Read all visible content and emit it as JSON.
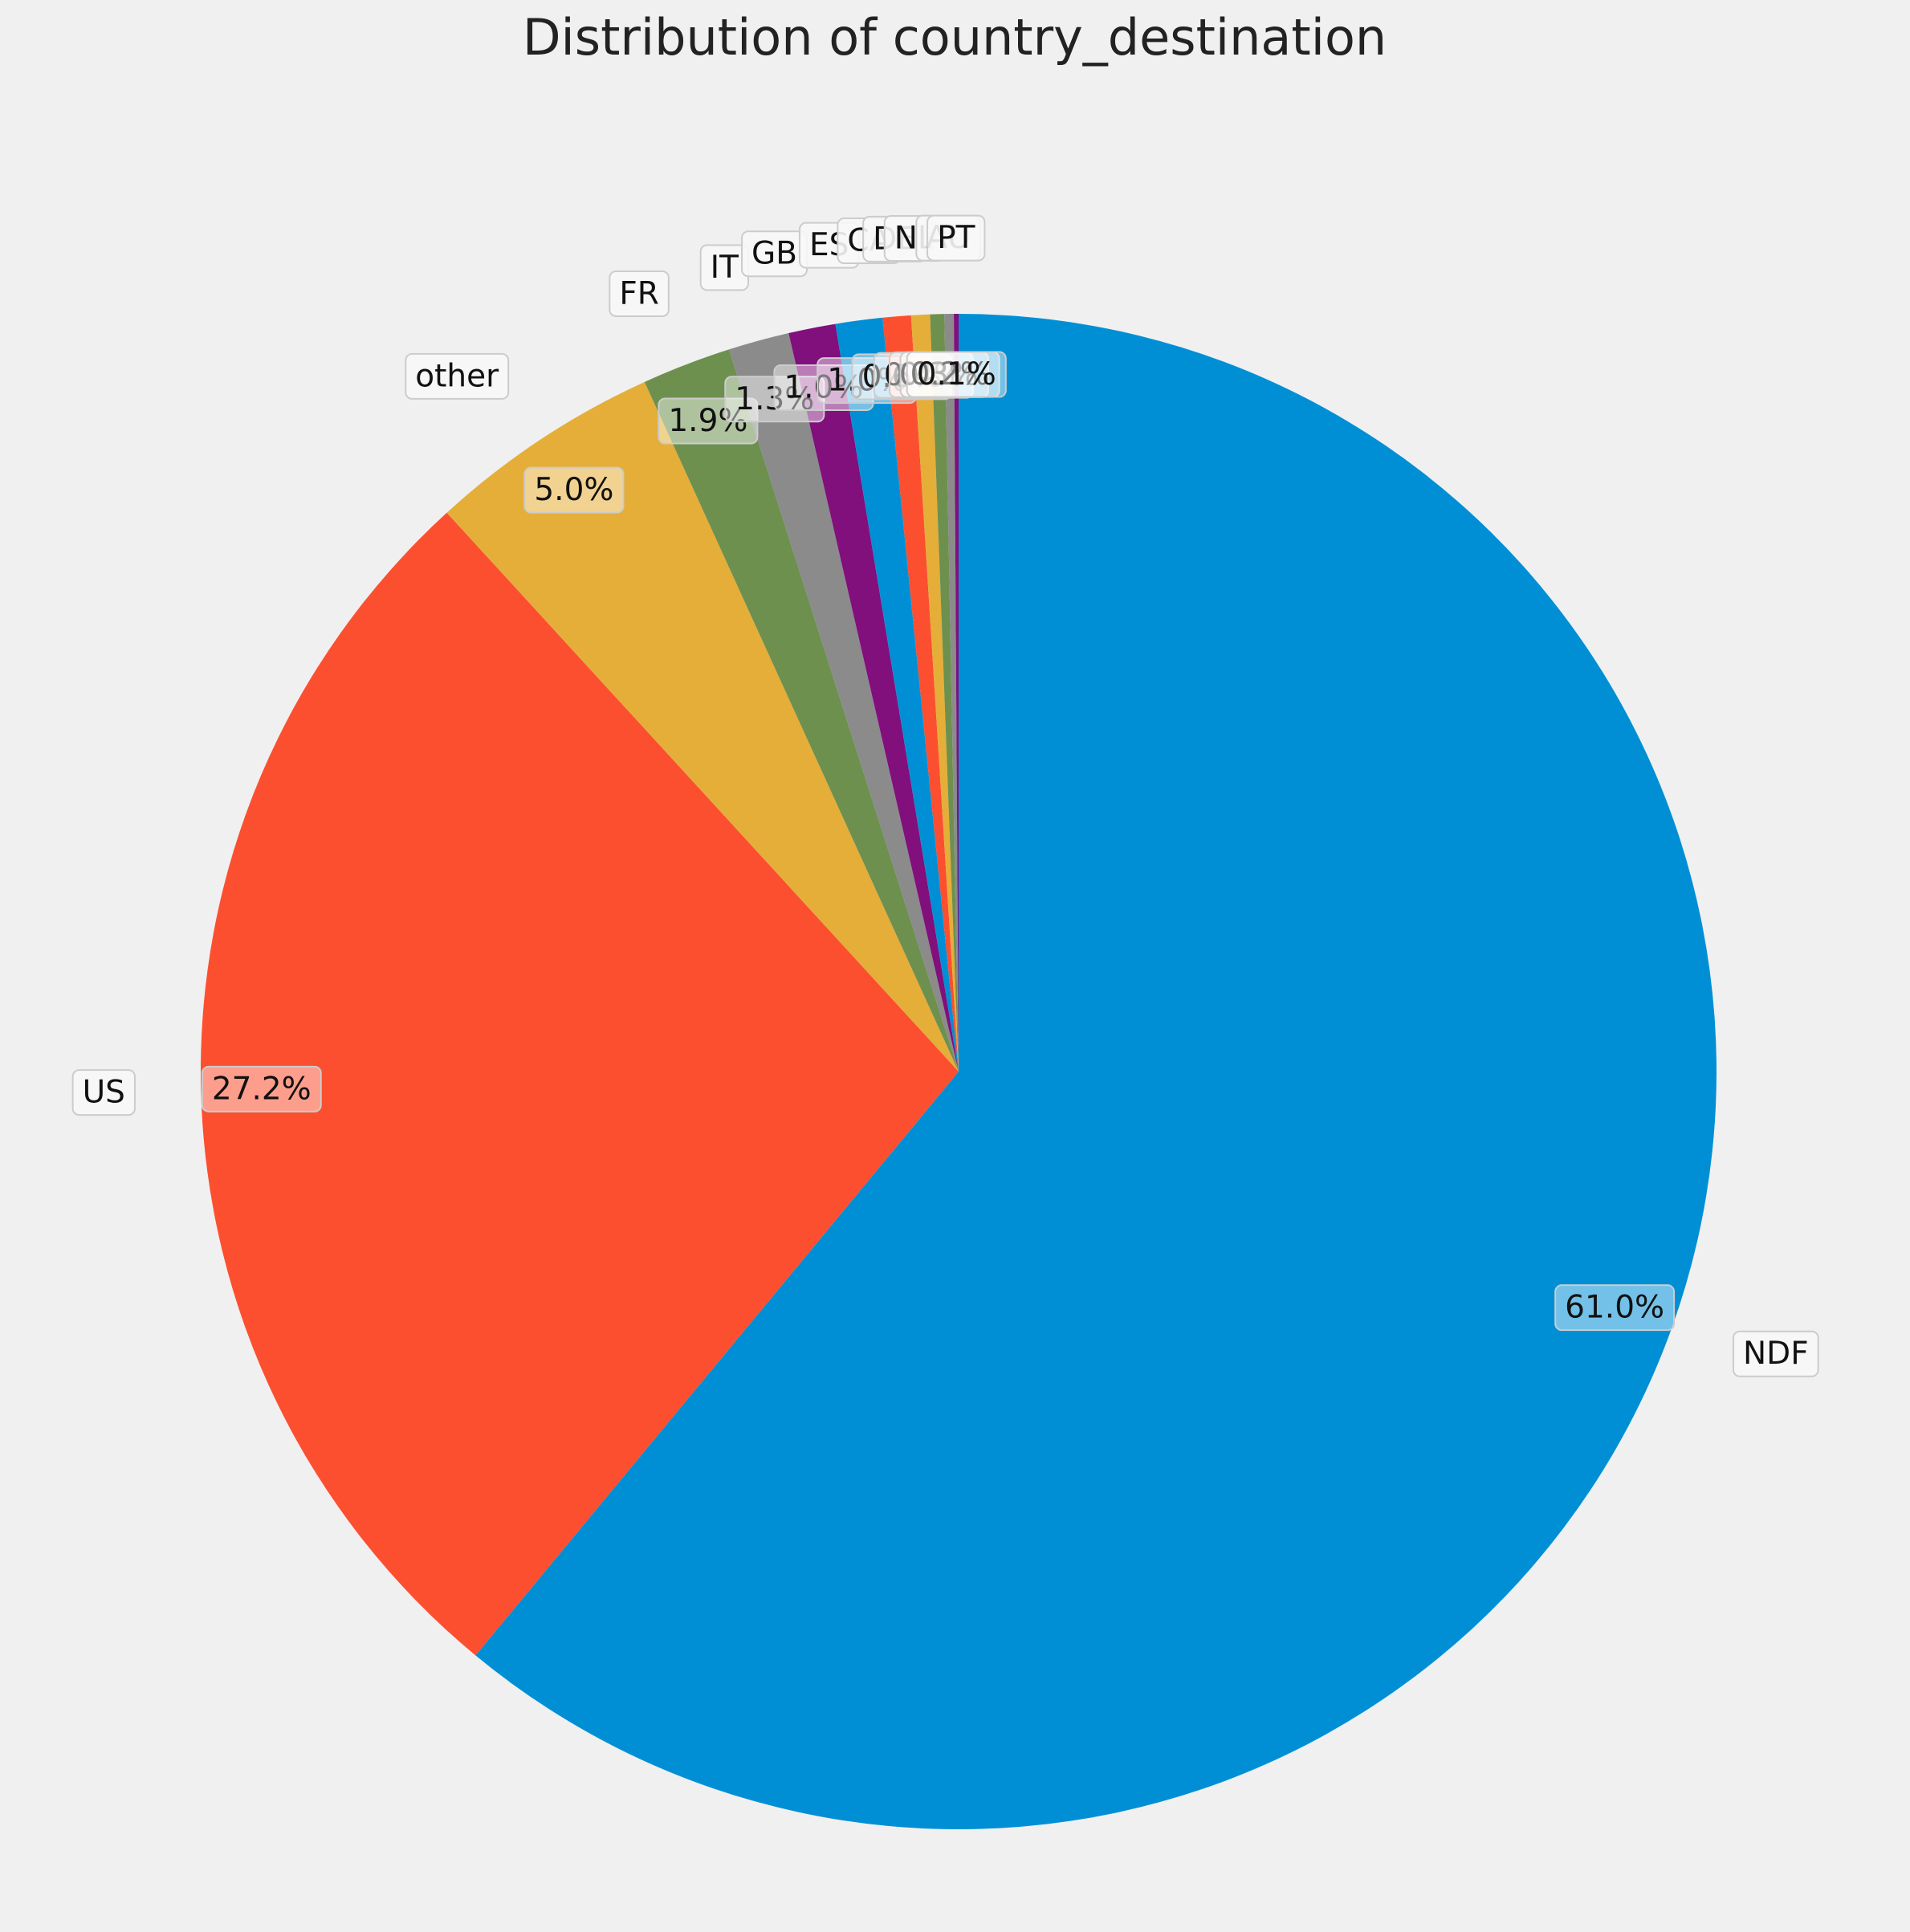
{
  "chart_data": {
    "type": "pie",
    "title": "Distribution of country_destination",
    "start_angle_deg": 90,
    "direction": "clockwise",
    "slices": [
      {
        "label": "NDF",
        "value": 61.0,
        "pct_label": "61.0%",
        "color": "#008fd5"
      },
      {
        "label": "US",
        "value": 27.2,
        "pct_label": "27.2%",
        "color": "#fc4f30"
      },
      {
        "label": "other",
        "value": 5.0,
        "pct_label": "5.0%",
        "color": "#e5ae38"
      },
      {
        "label": "FR",
        "value": 1.9,
        "pct_label": "1.9%",
        "color": "#6d904f"
      },
      {
        "label": "IT",
        "value": 1.3,
        "pct_label": "1.3%",
        "color": "#8b8b8b"
      },
      {
        "label": "GB",
        "value": 1.0,
        "pct_label": "1.0%",
        "color": "#810f7c"
      },
      {
        "label": "ES",
        "value": 1.0,
        "pct_label": "1.0%",
        "color": "#008fd5"
      },
      {
        "label": "CA",
        "value": 0.6,
        "pct_label": "0.6%",
        "color": "#fc4f30"
      },
      {
        "label": "DE",
        "value": 0.4,
        "pct_label": "0.4%",
        "color": "#e5ae38"
      },
      {
        "label": "NL",
        "value": 0.3,
        "pct_label": "0.3%",
        "color": "#6d904f"
      },
      {
        "label": "AU",
        "value": 0.2,
        "pct_label": "0.2%",
        "color": "#8b8b8b"
      },
      {
        "label": "PT",
        "value": 0.1,
        "pct_label": "0.1%",
        "color": "#810f7c"
      }
    ]
  }
}
